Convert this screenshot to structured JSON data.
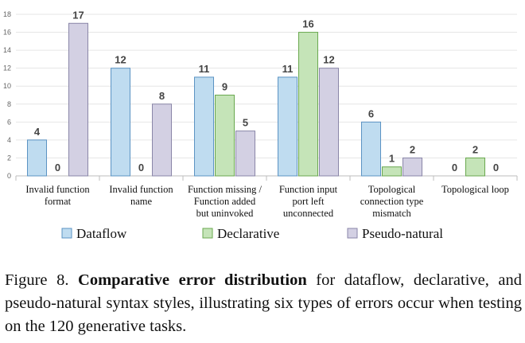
{
  "chart_data": {
    "type": "bar",
    "categories": [
      [
        "Invalid function",
        "format"
      ],
      [
        "Invalid function",
        "name"
      ],
      [
        "Function missing /",
        "Function added",
        "but uninvoked"
      ],
      [
        "Function input",
        "port left",
        "unconnected"
      ],
      [
        "Topological",
        "connection type",
        "mismatch"
      ],
      [
        "Topological loop"
      ]
    ],
    "series": [
      {
        "name": "Dataflow",
        "values": [
          4,
          12,
          11,
          11,
          6,
          0
        ],
        "color": "#bfdcf0",
        "stroke": "#5b93c3"
      },
      {
        "name": "Declarative",
        "values": [
          0,
          0,
          9,
          16,
          1,
          2
        ],
        "color": "#c5e4b8",
        "stroke": "#6aa84f"
      },
      {
        "name": "Pseudo-natural",
        "values": [
          17,
          8,
          5,
          12,
          2,
          0
        ],
        "color": "#d3d0e3",
        "stroke": "#8a86a8"
      }
    ],
    "yticks": [
      "0",
      "2",
      "4",
      "6",
      "8",
      "10",
      "12",
      "14",
      "16",
      "18"
    ],
    "ylim": [
      0,
      18
    ],
    "grid": true,
    "legend_position": "bottom"
  },
  "caption": {
    "label": "Figure 8.",
    "bold": "Comparative error distribution",
    "rest": "for dataflow, declarative, and pseudo-natural syntax styles, illustrating six types of errors occur when testing on the 120 generative tasks."
  }
}
